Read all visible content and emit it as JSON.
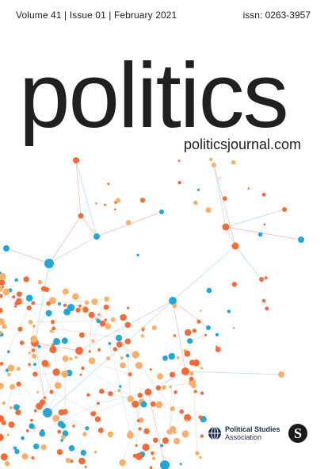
{
  "header": {
    "issue_info": "Volume 41 | Issue 01 | February 2021",
    "issn": "issn: 0263-3957"
  },
  "title": "politics",
  "url": "politicsjournal.com",
  "publisher": {
    "society_line1": "Political Studies",
    "society_line2": "Association",
    "sage_mark": "S"
  },
  "colors": {
    "orange": "#f26b3a",
    "light_orange": "#f7b06b",
    "blue": "#22a7d6",
    "text": "#202020"
  }
}
